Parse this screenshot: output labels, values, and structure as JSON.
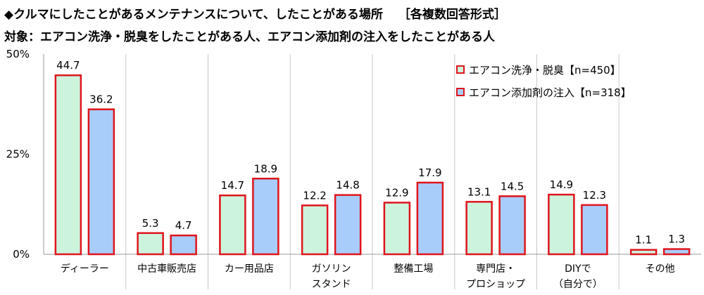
{
  "header": {
    "title": "◆クルマにしたことがあるメンテナンスについて、したことがある場所",
    "format": "［各複数回答形式］",
    "subtitle": "対象：エアコン洗浄・脱臭をしたことがある人、エアコン添加剤の注入をしたことがある人"
  },
  "colors": {
    "series1": "#ccf4dd",
    "series2": "#a9cdfb",
    "border": "#e0141c",
    "grid": "#c8c8c8"
  },
  "chart_data": {
    "type": "bar",
    "categories": [
      [
        "ディーラー"
      ],
      [
        "中古車販売店"
      ],
      [
        "カー用品店"
      ],
      [
        "ガソリン",
        "スタンド"
      ],
      [
        "整備工場"
      ],
      [
        "専門店・",
        "プロショップ"
      ],
      [
        "DIYで",
        "（自分で）"
      ],
      [
        "その他"
      ]
    ],
    "series": [
      {
        "name": "エアコン洗浄・脱臭【n=450】",
        "values": [
          44.7,
          5.3,
          14.7,
          12.2,
          12.9,
          13.1,
          14.9,
          1.1
        ]
      },
      {
        "name": "エアコン添加剤の注入【n=318】",
        "values": [
          36.2,
          4.7,
          18.9,
          14.8,
          17.9,
          14.5,
          12.3,
          1.3
        ]
      }
    ],
    "yticks": [
      "0%",
      "25%",
      "50%"
    ],
    "ylim": [
      0,
      50
    ],
    "grid": "vertical separators",
    "legend_position": "top-right"
  }
}
